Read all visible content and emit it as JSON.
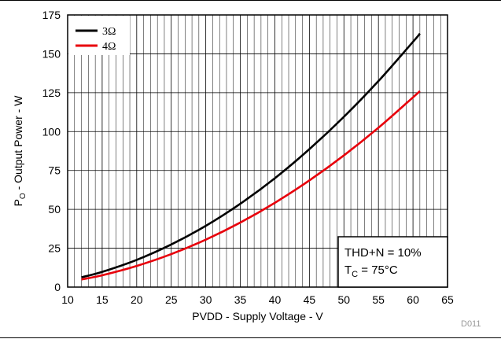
{
  "chart_data": {
    "type": "line",
    "title": "",
    "xlabel": "PVDD - Supply Voltage - V",
    "ylabel": {
      "main": "P",
      "sub": "O",
      "rest": " - Output Power - W"
    },
    "xlim": [
      10,
      65
    ],
    "ylim": [
      0,
      175
    ],
    "x_ticks": [
      10,
      15,
      20,
      25,
      30,
      35,
      40,
      45,
      50,
      55,
      60,
      65
    ],
    "y_ticks": [
      0,
      25,
      50,
      75,
      100,
      125,
      150,
      175
    ],
    "grid": true,
    "legend_position": "top-left",
    "series": [
      {
        "name": "3Ω",
        "color": "#000000",
        "x": [
          12,
          15,
          20,
          25,
          30,
          35,
          40,
          45,
          50,
          55,
          60,
          61
        ],
        "y": [
          6.3,
          9.8,
          17.5,
          27.4,
          39.4,
          53.6,
          70.0,
          88.7,
          109.5,
          132.5,
          157.7,
          163
        ]
      },
      {
        "name": "4Ω",
        "color": "#e8000b",
        "x": [
          12,
          15,
          20,
          25,
          30,
          35,
          40,
          45,
          50,
          55,
          60,
          61
        ],
        "y": [
          4.9,
          7.6,
          13.6,
          21.2,
          30.5,
          41.5,
          54.2,
          68.6,
          84.7,
          102.5,
          122.0,
          126
        ]
      }
    ],
    "annotation": {
      "line1": "THD+N = 10%",
      "line2": {
        "main": "T",
        "sub": "C",
        "rest": " = 75°C"
      }
    },
    "figure_code": "D011"
  }
}
